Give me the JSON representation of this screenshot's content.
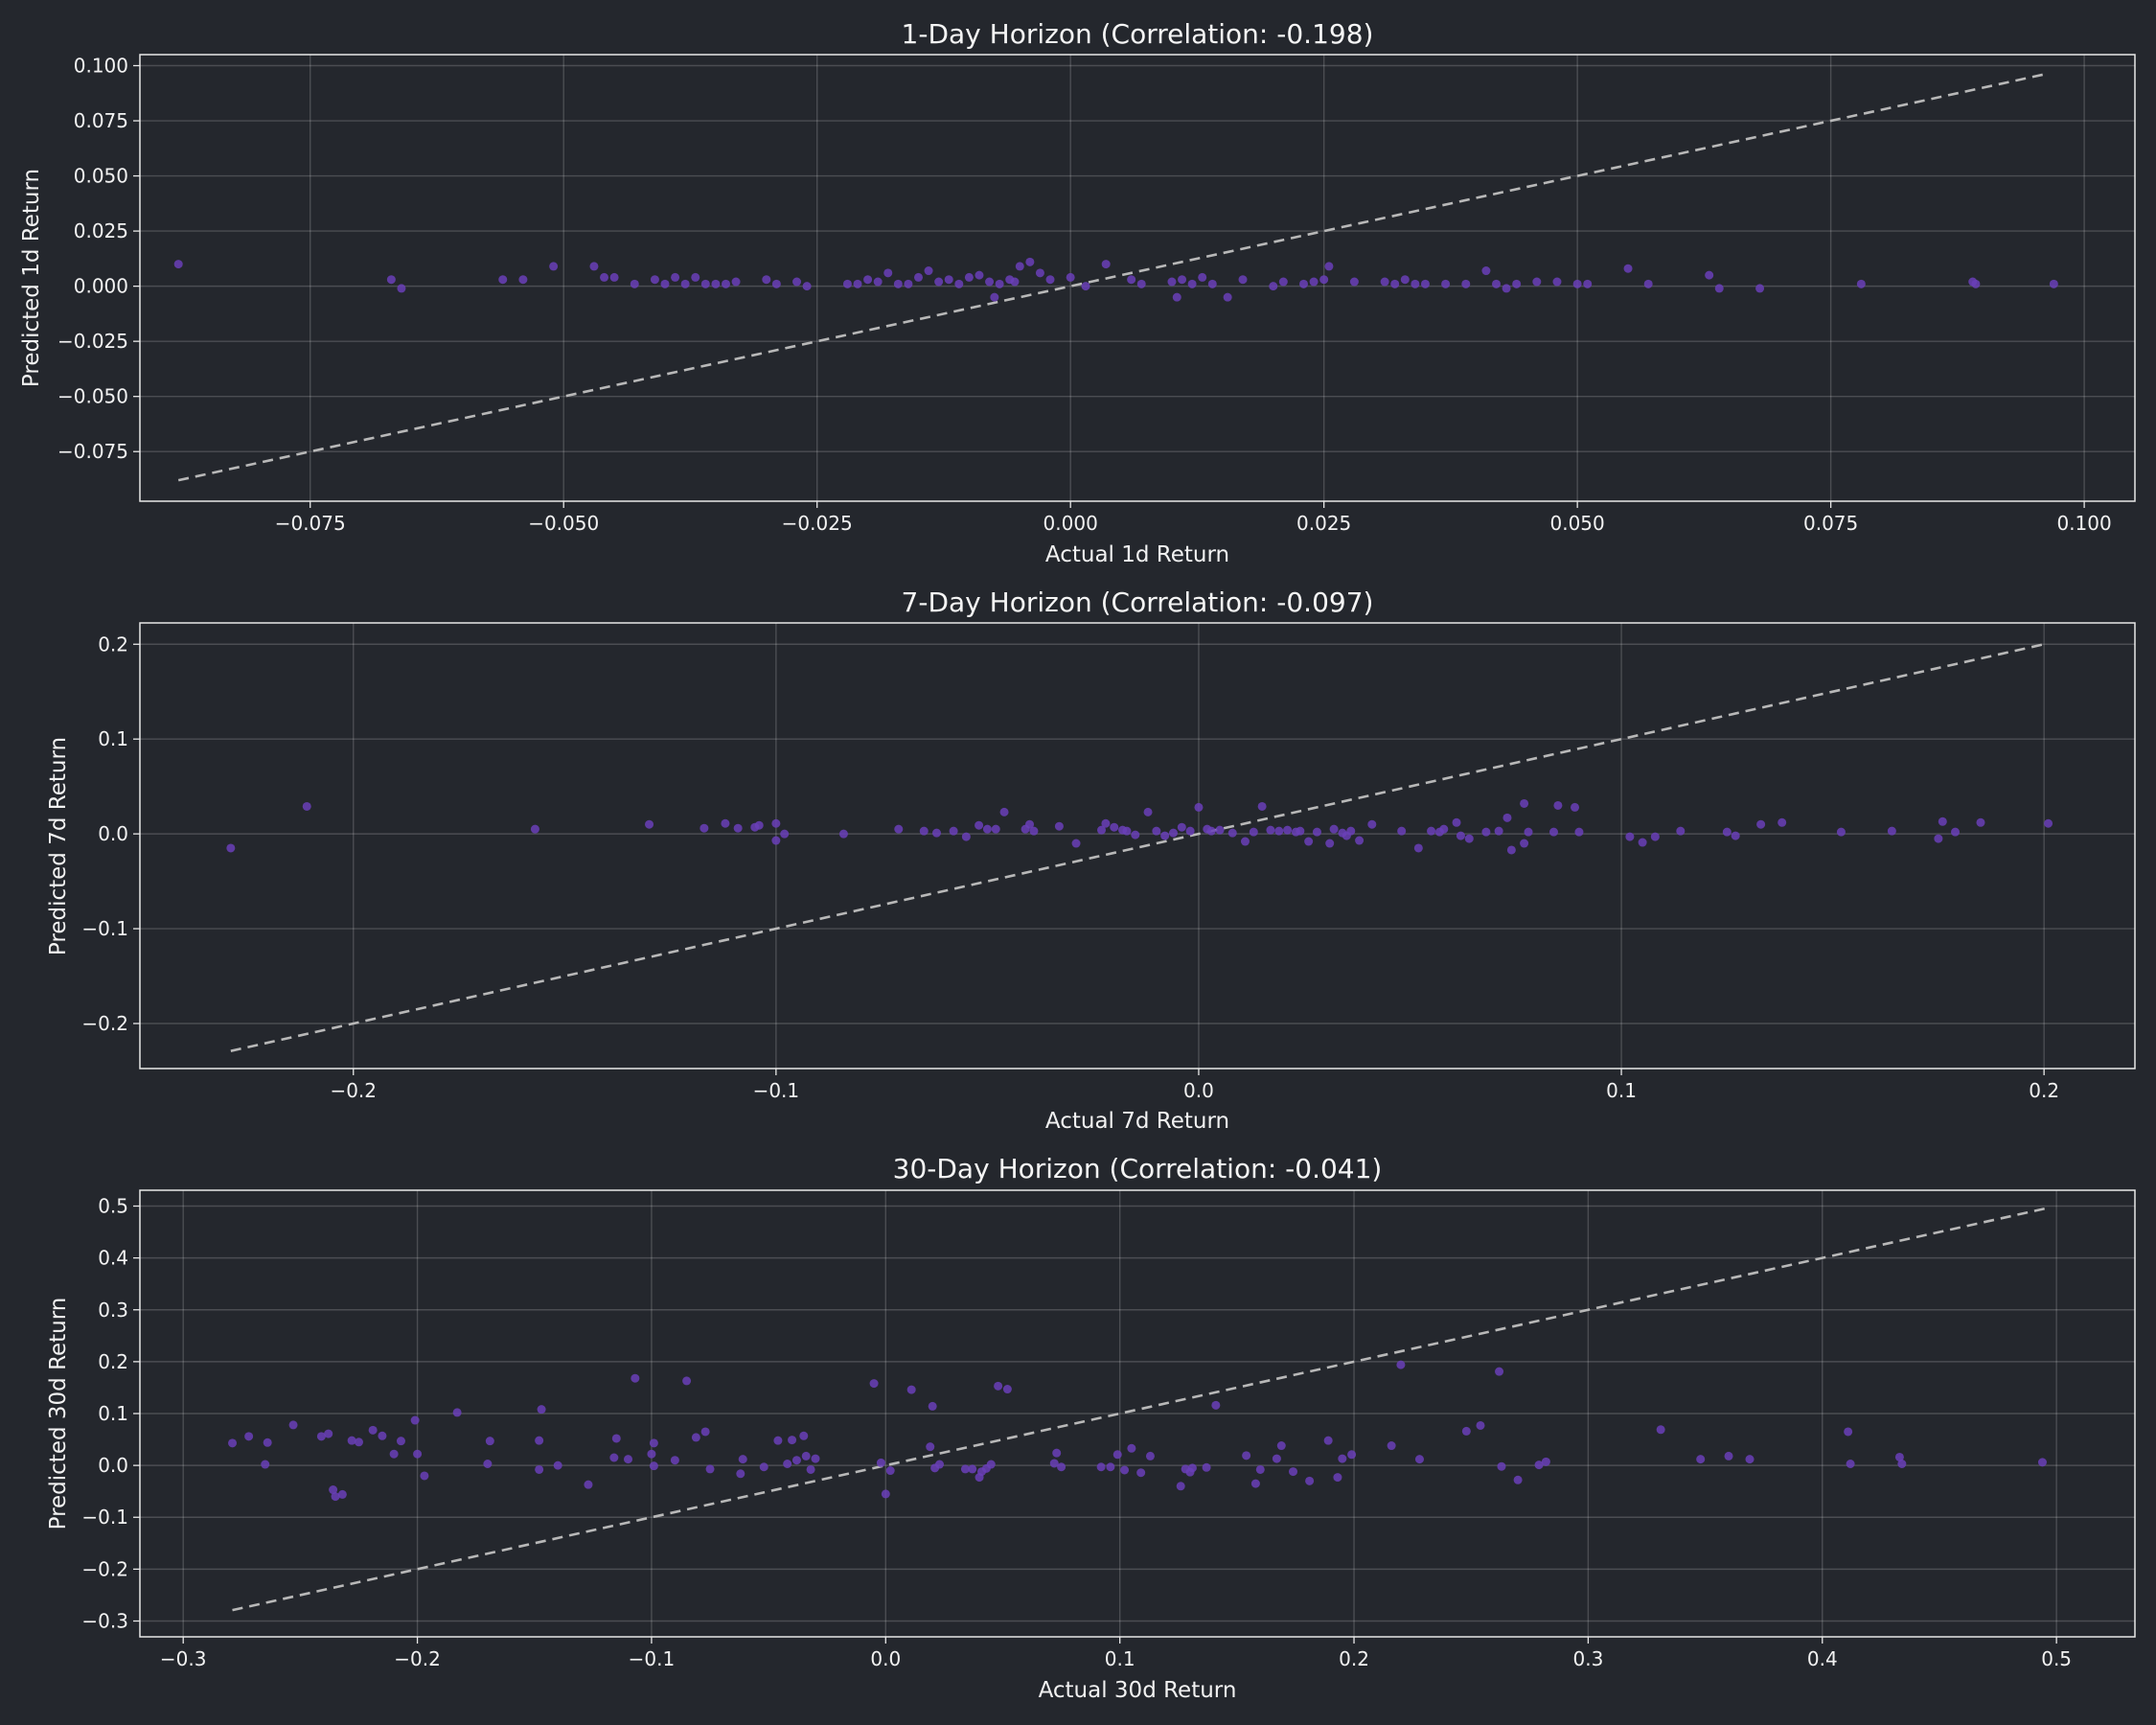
{
  "style": {
    "background": "#24272d",
    "axes": "#e8e8e8",
    "text": "#f2f2f2",
    "point": "#6a40b8",
    "reference": "#b8b8b8"
  },
  "chart_data": [
    {
      "type": "scatter",
      "title": "1-Day Horizon (Correlation: -0.198)",
      "xlabel": "Actual 1d Return",
      "ylabel": "Predicted 1d Return",
      "xlim": [
        -0.0918,
        0.105
      ],
      "ylim": [
        -0.0975,
        0.105
      ],
      "xticks": [
        -0.075,
        -0.05,
        -0.025,
        0.0,
        0.025,
        0.05,
        0.075,
        0.1
      ],
      "xtick_labels": [
        "−0.075",
        "−0.050",
        "−0.025",
        "0.000",
        "0.025",
        "0.050",
        "0.075",
        "0.100"
      ],
      "yticks": [
        -0.075,
        -0.05,
        -0.025,
        0.0,
        0.025,
        0.05,
        0.075,
        0.1
      ],
      "ytick_labels": [
        "−0.075",
        "−0.050",
        "−0.025",
        "0.000",
        "0.025",
        "0.050",
        "0.075",
        "0.100"
      ],
      "grid": true,
      "reference_line": [
        [
          -0.088,
          -0.088
        ],
        [
          0.0965,
          0.0965
        ]
      ],
      "points": [
        [
          -0.088,
          0.01
        ],
        [
          -0.067,
          0.003
        ],
        [
          -0.066,
          -0.001
        ],
        [
          -0.056,
          0.003
        ],
        [
          -0.054,
          0.003
        ],
        [
          -0.051,
          0.009
        ],
        [
          -0.047,
          0.009
        ],
        [
          -0.046,
          0.004
        ],
        [
          -0.045,
          0.004
        ],
        [
          -0.043,
          0.001
        ],
        [
          -0.041,
          0.003
        ],
        [
          -0.04,
          0.001
        ],
        [
          -0.039,
          0.004
        ],
        [
          -0.038,
          0.001
        ],
        [
          -0.037,
          0.004
        ],
        [
          -0.036,
          0.001
        ],
        [
          -0.035,
          0.001
        ],
        [
          -0.034,
          0.001
        ],
        [
          -0.033,
          0.002
        ],
        [
          -0.03,
          0.003
        ],
        [
          -0.029,
          0.001
        ],
        [
          -0.027,
          0.002
        ],
        [
          -0.026,
          0.0
        ],
        [
          -0.022,
          0.001
        ],
        [
          -0.021,
          0.001
        ],
        [
          -0.02,
          0.003
        ],
        [
          -0.019,
          0.002
        ],
        [
          -0.018,
          0.006
        ],
        [
          -0.017,
          0.001
        ],
        [
          -0.016,
          0.001
        ],
        [
          -0.015,
          0.004
        ],
        [
          -0.014,
          0.007
        ],
        [
          -0.013,
          0.002
        ],
        [
          -0.012,
          0.003
        ],
        [
          -0.011,
          0.001
        ],
        [
          -0.01,
          0.004
        ],
        [
          -0.009,
          0.005
        ],
        [
          -0.008,
          0.002
        ],
        [
          -0.007,
          0.001
        ],
        [
          -0.006,
          0.003
        ],
        [
          -0.005,
          0.009
        ],
        [
          -0.004,
          0.011
        ],
        [
          -0.003,
          0.006
        ],
        [
          -0.002,
          0.003
        ],
        [
          -0.0075,
          -0.005
        ],
        [
          -0.0055,
          0.002
        ],
        [
          0.0,
          0.004
        ],
        [
          0.0015,
          0.0
        ],
        [
          0.0035,
          0.01
        ],
        [
          0.006,
          0.003
        ],
        [
          0.007,
          0.001
        ],
        [
          0.01,
          0.002
        ],
        [
          0.011,
          0.003
        ],
        [
          0.012,
          0.001
        ],
        [
          0.013,
          0.004
        ],
        [
          0.014,
          0.001
        ],
        [
          0.0105,
          -0.005
        ],
        [
          0.0155,
          -0.005
        ],
        [
          0.017,
          0.003
        ],
        [
          0.02,
          0.0
        ],
        [
          0.021,
          0.002
        ],
        [
          0.023,
          0.001
        ],
        [
          0.024,
          0.002
        ],
        [
          0.025,
          0.003
        ],
        [
          0.0255,
          0.009
        ],
        [
          0.028,
          0.002
        ],
        [
          0.031,
          0.002
        ],
        [
          0.032,
          0.001
        ],
        [
          0.033,
          0.003
        ],
        [
          0.034,
          0.001
        ],
        [
          0.035,
          0.001
        ],
        [
          0.037,
          0.001
        ],
        [
          0.039,
          0.001
        ],
        [
          0.041,
          0.007
        ],
        [
          0.042,
          0.001
        ],
        [
          0.043,
          -0.001
        ],
        [
          0.044,
          0.001
        ],
        [
          0.046,
          0.002
        ],
        [
          0.048,
          0.002
        ],
        [
          0.05,
          0.001
        ],
        [
          0.051,
          0.001
        ],
        [
          0.055,
          0.008
        ],
        [
          0.057,
          0.001
        ],
        [
          0.063,
          0.005
        ],
        [
          0.064,
          -0.001
        ],
        [
          0.068,
          -0.001
        ],
        [
          0.078,
          0.001
        ],
        [
          0.089,
          0.002
        ],
        [
          0.0893,
          0.001
        ],
        [
          0.097,
          0.001
        ]
      ]
    },
    {
      "type": "scatter",
      "title": "7-Day Horizon (Correlation: -0.097)",
      "xlabel": "Actual 7d Return",
      "ylabel": "Predicted 7d Return",
      "xlim": [
        -0.2505,
        0.2215
      ],
      "ylim": [
        -0.2475,
        0.2225
      ],
      "xticks": [
        -0.2,
        -0.1,
        0.0,
        0.1,
        0.2
      ],
      "xtick_labels": [
        "−0.2",
        "−0.1",
        "0.0",
        "0.1",
        "0.2"
      ],
      "yticks": [
        -0.2,
        -0.1,
        0.0,
        0.1,
        0.2
      ],
      "ytick_labels": [
        "−0.2",
        "−0.1",
        "0.0",
        "0.1",
        "0.2"
      ],
      "grid": true,
      "reference_line": [
        [
          -0.229,
          -0.229
        ],
        [
          0.2,
          0.2
        ]
      ],
      "points": [
        [
          -0.229,
          -0.015
        ],
        [
          -0.211,
          0.029
        ],
        [
          -0.157,
          0.005
        ],
        [
          -0.13,
          0.01
        ],
        [
          -0.117,
          0.006
        ],
        [
          -0.112,
          0.011
        ],
        [
          -0.109,
          0.006
        ],
        [
          -0.105,
          0.007
        ],
        [
          -0.104,
          0.009
        ],
        [
          -0.1,
          0.011
        ],
        [
          -0.1,
          -0.007
        ],
        [
          -0.098,
          0.0
        ],
        [
          -0.084,
          0.0
        ],
        [
          -0.071,
          0.005
        ],
        [
          -0.065,
          0.003
        ],
        [
          -0.062,
          0.001
        ],
        [
          -0.058,
          0.003
        ],
        [
          -0.055,
          -0.003
        ],
        [
          -0.052,
          0.009
        ],
        [
          -0.05,
          0.005
        ],
        [
          -0.048,
          0.005
        ],
        [
          -0.046,
          0.023
        ],
        [
          -0.041,
          0.005
        ],
        [
          -0.04,
          0.01
        ],
        [
          -0.039,
          0.003
        ],
        [
          -0.033,
          0.008
        ],
        [
          -0.029,
          -0.01
        ],
        [
          -0.023,
          0.004
        ],
        [
          -0.022,
          0.011
        ],
        [
          -0.02,
          0.007
        ],
        [
          -0.018,
          0.004
        ],
        [
          -0.017,
          0.003
        ],
        [
          -0.015,
          -0.001
        ],
        [
          -0.012,
          0.023
        ],
        [
          -0.01,
          0.003
        ],
        [
          -0.008,
          -0.002
        ],
        [
          -0.006,
          0.001
        ],
        [
          -0.004,
          0.007
        ],
        [
          -0.002,
          0.003
        ],
        [
          0.0,
          0.028
        ],
        [
          0.002,
          0.005
        ],
        [
          0.003,
          0.003
        ],
        [
          0.005,
          0.004
        ],
        [
          0.008,
          0.001
        ],
        [
          0.011,
          -0.008
        ],
        [
          0.013,
          0.002
        ],
        [
          0.015,
          0.029
        ],
        [
          0.017,
          0.004
        ],
        [
          0.019,
          0.003
        ],
        [
          0.021,
          0.004
        ],
        [
          0.023,
          0.002
        ],
        [
          0.024,
          0.003
        ],
        [
          0.026,
          -0.008
        ],
        [
          0.028,
          0.002
        ],
        [
          0.031,
          -0.01
        ],
        [
          0.032,
          0.005
        ],
        [
          0.034,
          0.001
        ],
        [
          0.035,
          -0.002
        ],
        [
          0.036,
          0.003
        ],
        [
          0.038,
          -0.007
        ],
        [
          0.041,
          0.01
        ],
        [
          0.048,
          0.003
        ],
        [
          0.052,
          -0.015
        ],
        [
          0.055,
          0.003
        ],
        [
          0.057,
          0.002
        ],
        [
          0.058,
          0.005
        ],
        [
          0.061,
          0.012
        ],
        [
          0.062,
          -0.002
        ],
        [
          0.064,
          -0.005
        ],
        [
          0.068,
          0.002
        ],
        [
          0.071,
          0.003
        ],
        [
          0.073,
          0.017
        ],
        [
          0.074,
          -0.017
        ],
        [
          0.077,
          0.032
        ],
        [
          0.077,
          -0.01
        ],
        [
          0.078,
          0.002
        ],
        [
          0.084,
          0.002
        ],
        [
          0.085,
          0.03
        ],
        [
          0.089,
          0.028
        ],
        [
          0.09,
          0.002
        ],
        [
          0.102,
          -0.003
        ],
        [
          0.105,
          -0.009
        ],
        [
          0.108,
          -0.003
        ],
        [
          0.114,
          0.003
        ],
        [
          0.125,
          0.002
        ],
        [
          0.127,
          -0.002
        ],
        [
          0.133,
          0.01
        ],
        [
          0.138,
          0.012
        ],
        [
          0.152,
          0.002
        ],
        [
          0.164,
          0.003
        ],
        [
          0.175,
          -0.005
        ],
        [
          0.176,
          0.013
        ],
        [
          0.179,
          0.002
        ],
        [
          0.185,
          0.012
        ],
        [
          0.201,
          0.011
        ]
      ]
    },
    {
      "type": "scatter",
      "title": "30-Day Horizon (Correlation: -0.041)",
      "xlabel": "Actual 30d Return",
      "ylabel": "Predicted 30d Return",
      "xlim": [
        -0.3185,
        0.5335
      ],
      "ylim": [
        -0.3305,
        0.5305
      ],
      "xticks": [
        -0.3,
        -0.2,
        -0.1,
        0.0,
        0.1,
        0.2,
        0.3,
        0.4,
        0.5
      ],
      "xtick_labels": [
        "−0.3",
        "−0.2",
        "−0.1",
        "0.0",
        "0.1",
        "0.2",
        "0.3",
        "0.4",
        "0.5"
      ],
      "yticks": [
        -0.3,
        -0.2,
        -0.1,
        0.0,
        0.1,
        0.2,
        0.3,
        0.4,
        0.5
      ],
      "ytick_labels": [
        "−0.3",
        "−0.2",
        "−0.1",
        "0.0",
        "0.1",
        "0.2",
        "0.3",
        "0.4",
        "0.5"
      ],
      "grid": true,
      "reference_line": [
        [
          -0.279,
          -0.279
        ],
        [
          0.495,
          0.495
        ]
      ],
      "points": [
        [
          -0.279,
          0.043
        ],
        [
          -0.272,
          0.056
        ],
        [
          -0.265,
          0.002
        ],
        [
          -0.264,
          0.044
        ],
        [
          -0.253,
          0.078
        ],
        [
          -0.241,
          0.056
        ],
        [
          -0.238,
          0.061
        ],
        [
          -0.236,
          -0.047
        ],
        [
          -0.235,
          -0.06
        ],
        [
          -0.232,
          -0.056
        ],
        [
          -0.228,
          0.048
        ],
        [
          -0.225,
          0.045
        ],
        [
          -0.219,
          0.068
        ],
        [
          -0.215,
          0.057
        ],
        [
          -0.21,
          0.022
        ],
        [
          -0.207,
          0.047
        ],
        [
          -0.201,
          0.087
        ],
        [
          -0.2,
          0.022
        ],
        [
          -0.197,
          -0.02
        ],
        [
          -0.183,
          0.102
        ],
        [
          -0.17,
          0.003
        ],
        [
          -0.169,
          0.047
        ],
        [
          -0.148,
          0.048
        ],
        [
          -0.148,
          -0.008
        ],
        [
          -0.147,
          0.108
        ],
        [
          -0.14,
          0.0
        ],
        [
          -0.127,
          -0.037
        ],
        [
          -0.116,
          0.015
        ],
        [
          -0.115,
          0.052
        ],
        [
          -0.11,
          0.012
        ],
        [
          -0.107,
          0.168
        ],
        [
          -0.1,
          0.022
        ],
        [
          -0.099,
          0.043
        ],
        [
          -0.099,
          -0.001
        ],
        [
          -0.09,
          0.01
        ],
        [
          -0.085,
          0.163
        ],
        [
          -0.081,
          0.054
        ],
        [
          -0.077,
          0.065
        ],
        [
          -0.075,
          -0.007
        ],
        [
          -0.062,
          -0.016
        ],
        [
          -0.061,
          0.012
        ],
        [
          -0.052,
          -0.003
        ],
        [
          -0.046,
          0.048
        ],
        [
          -0.042,
          0.003
        ],
        [
          -0.04,
          0.049
        ],
        [
          -0.038,
          0.01
        ],
        [
          -0.035,
          0.057
        ],
        [
          -0.034,
          0.018
        ],
        [
          -0.032,
          -0.008
        ],
        [
          -0.03,
          0.013
        ],
        [
          -0.005,
          0.158
        ],
        [
          -0.002,
          0.005
        ],
        [
          0.0,
          -0.055
        ],
        [
          0.002,
          -0.01
        ],
        [
          0.011,
          0.146
        ],
        [
          0.019,
          0.036
        ],
        [
          0.02,
          0.114
        ],
        [
          0.021,
          -0.005
        ],
        [
          0.023,
          0.002
        ],
        [
          0.034,
          -0.007
        ],
        [
          0.037,
          -0.007
        ],
        [
          0.04,
          -0.023
        ],
        [
          0.041,
          -0.012
        ],
        [
          0.043,
          -0.006
        ],
        [
          0.045,
          0.002
        ],
        [
          0.048,
          0.153
        ],
        [
          0.052,
          0.147
        ],
        [
          0.072,
          0.004
        ],
        [
          0.073,
          0.024
        ],
        [
          0.075,
          -0.003
        ],
        [
          0.092,
          -0.003
        ],
        [
          0.096,
          -0.003
        ],
        [
          0.099,
          0.021
        ],
        [
          0.102,
          -0.009
        ],
        [
          0.105,
          0.033
        ],
        [
          0.109,
          -0.014
        ],
        [
          0.113,
          0.018
        ],
        [
          0.126,
          -0.04
        ],
        [
          0.128,
          -0.007
        ],
        [
          0.13,
          -0.013
        ],
        [
          0.131,
          -0.005
        ],
        [
          0.137,
          -0.004
        ],
        [
          0.141,
          0.116
        ],
        [
          0.154,
          0.019
        ],
        [
          0.158,
          -0.035
        ],
        [
          0.16,
          -0.008
        ],
        [
          0.167,
          0.013
        ],
        [
          0.169,
          0.038
        ],
        [
          0.174,
          -0.012
        ],
        [
          0.181,
          -0.03
        ],
        [
          0.189,
          0.048
        ],
        [
          0.193,
          -0.023
        ],
        [
          0.195,
          0.013
        ],
        [
          0.199,
          0.021
        ],
        [
          0.216,
          0.038
        ],
        [
          0.22,
          0.194
        ],
        [
          0.228,
          0.012
        ],
        [
          0.248,
          0.066
        ],
        [
          0.254,
          0.077
        ],
        [
          0.262,
          0.181
        ],
        [
          0.263,
          -0.002
        ],
        [
          0.27,
          -0.028
        ],
        [
          0.279,
          0.001
        ],
        [
          0.282,
          0.007
        ],
        [
          0.331,
          0.069
        ],
        [
          0.348,
          0.012
        ],
        [
          0.36,
          0.018
        ],
        [
          0.369,
          0.012
        ],
        [
          0.411,
          0.065
        ],
        [
          0.412,
          0.003
        ],
        [
          0.433,
          0.016
        ],
        [
          0.434,
          0.003
        ],
        [
          0.494,
          0.006
        ]
      ]
    }
  ]
}
